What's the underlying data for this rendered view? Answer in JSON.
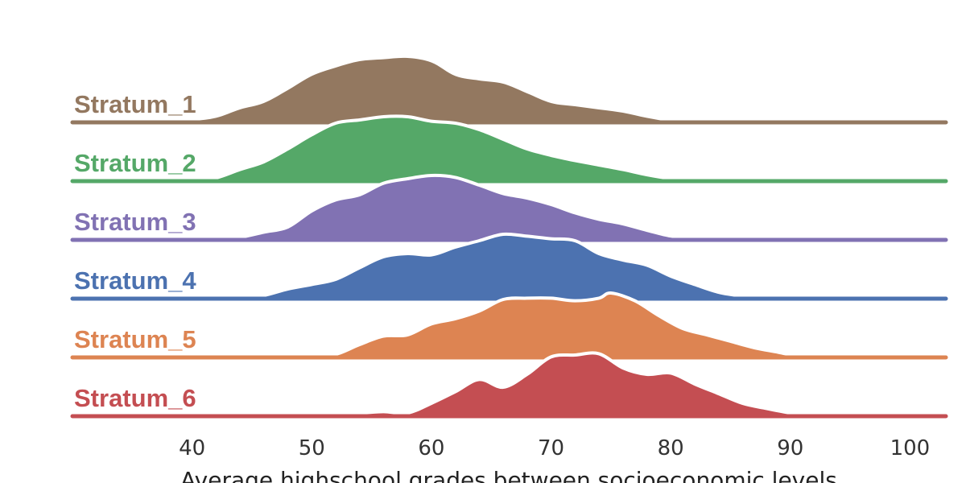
{
  "chart_data": {
    "type": "area",
    "title": "",
    "xlabel": "Average highschool grades between socioeconomic levels",
    "ylabel": "",
    "xlim": [
      30,
      103
    ],
    "xticks": [
      40,
      50,
      60,
      70,
      80,
      90,
      100
    ],
    "grid": false,
    "legend": "none",
    "series": [
      {
        "name": "Stratum_1",
        "color": "#937860",
        "points": [
          [
            30,
            0
          ],
          [
            38,
            0
          ],
          [
            40,
            0.02
          ],
          [
            42,
            0.07
          ],
          [
            44,
            0.2
          ],
          [
            46,
            0.3
          ],
          [
            48,
            0.5
          ],
          [
            50,
            0.72
          ],
          [
            52,
            0.85
          ],
          [
            54,
            0.95
          ],
          [
            56,
            0.98
          ],
          [
            58,
            1.0
          ],
          [
            60,
            0.93
          ],
          [
            62,
            0.72
          ],
          [
            64,
            0.65
          ],
          [
            66,
            0.6
          ],
          [
            68,
            0.45
          ],
          [
            70,
            0.3
          ],
          [
            72,
            0.25
          ],
          [
            74,
            0.2
          ],
          [
            76,
            0.15
          ],
          [
            78,
            0.07
          ],
          [
            80,
            0.01
          ],
          [
            82,
            0
          ],
          [
            103,
            0
          ]
        ]
      },
      {
        "name": "Stratum_2",
        "color": "#55a868",
        "points": [
          [
            30,
            0
          ],
          [
            40,
            0
          ],
          [
            42,
            0.05
          ],
          [
            44,
            0.18
          ],
          [
            46,
            0.3
          ],
          [
            48,
            0.5
          ],
          [
            50,
            0.72
          ],
          [
            52,
            0.9
          ],
          [
            54,
            0.95
          ],
          [
            56,
            1.0
          ],
          [
            58,
            1.0
          ],
          [
            60,
            0.93
          ],
          [
            62,
            0.9
          ],
          [
            64,
            0.8
          ],
          [
            66,
            0.65
          ],
          [
            68,
            0.5
          ],
          [
            70,
            0.4
          ],
          [
            72,
            0.32
          ],
          [
            74,
            0.25
          ],
          [
            76,
            0.18
          ],
          [
            78,
            0.1
          ],
          [
            80,
            0.04
          ],
          [
            82,
            0.01
          ],
          [
            84,
            0
          ],
          [
            103,
            0
          ]
        ]
      },
      {
        "name": "Stratum_3",
        "color": "#8172b3",
        "points": [
          [
            30,
            0
          ],
          [
            42,
            0
          ],
          [
            44,
            0.04
          ],
          [
            46,
            0.12
          ],
          [
            48,
            0.2
          ],
          [
            50,
            0.45
          ],
          [
            52,
            0.62
          ],
          [
            54,
            0.7
          ],
          [
            56,
            0.88
          ],
          [
            58,
            0.95
          ],
          [
            60,
            1.0
          ],
          [
            62,
            0.97
          ],
          [
            64,
            0.85
          ],
          [
            66,
            0.72
          ],
          [
            68,
            0.65
          ],
          [
            70,
            0.55
          ],
          [
            72,
            0.42
          ],
          [
            74,
            0.32
          ],
          [
            76,
            0.25
          ],
          [
            78,
            0.15
          ],
          [
            80,
            0.06
          ],
          [
            82,
            0.03
          ],
          [
            84,
            0.02
          ],
          [
            86,
            0
          ],
          [
            103,
            0
          ]
        ]
      },
      {
        "name": "Stratum_4",
        "color": "#4c72b0",
        "points": [
          [
            30,
            0
          ],
          [
            44,
            0
          ],
          [
            46,
            0.05
          ],
          [
            48,
            0.15
          ],
          [
            50,
            0.22
          ],
          [
            52,
            0.3
          ],
          [
            54,
            0.48
          ],
          [
            56,
            0.65
          ],
          [
            58,
            0.7
          ],
          [
            60,
            0.68
          ],
          [
            62,
            0.8
          ],
          [
            64,
            0.9
          ],
          [
            66,
            1.0
          ],
          [
            68,
            0.97
          ],
          [
            70,
            0.93
          ],
          [
            72,
            0.9
          ],
          [
            74,
            0.7
          ],
          [
            76,
            0.6
          ],
          [
            78,
            0.52
          ],
          [
            80,
            0.35
          ],
          [
            82,
            0.22
          ],
          [
            84,
            0.1
          ],
          [
            86,
            0.04
          ],
          [
            88,
            0.01
          ],
          [
            90,
            0
          ],
          [
            103,
            0
          ]
        ]
      },
      {
        "name": "Stratum_5",
        "color": "#dd8452",
        "points": [
          [
            30,
            0
          ],
          [
            48,
            0
          ],
          [
            50,
            0.04
          ],
          [
            52,
            0.05
          ],
          [
            54,
            0.2
          ],
          [
            56,
            0.33
          ],
          [
            58,
            0.35
          ],
          [
            60,
            0.52
          ],
          [
            62,
            0.6
          ],
          [
            64,
            0.72
          ],
          [
            66,
            0.9
          ],
          [
            68,
            0.92
          ],
          [
            70,
            0.92
          ],
          [
            72,
            0.88
          ],
          [
            74,
            0.92
          ],
          [
            75,
            1.0
          ],
          [
            77,
            0.88
          ],
          [
            79,
            0.65
          ],
          [
            81,
            0.45
          ],
          [
            83,
            0.35
          ],
          [
            85,
            0.25
          ],
          [
            87,
            0.15
          ],
          [
            89,
            0.08
          ],
          [
            91,
            0.01
          ],
          [
            93,
            0
          ],
          [
            103,
            0
          ]
        ]
      },
      {
        "name": "Stratum_6",
        "color": "#c44e52",
        "points": [
          [
            30,
            0
          ],
          [
            48,
            0
          ],
          [
            50,
            0.03
          ],
          [
            52,
            0.05
          ],
          [
            54,
            0.05
          ],
          [
            56,
            0.07
          ],
          [
            58,
            0.05
          ],
          [
            60,
            0.2
          ],
          [
            62,
            0.38
          ],
          [
            64,
            0.57
          ],
          [
            66,
            0.45
          ],
          [
            68,
            0.65
          ],
          [
            70,
            0.92
          ],
          [
            72,
            0.95
          ],
          [
            74,
            0.97
          ],
          [
            76,
            0.75
          ],
          [
            78,
            0.65
          ],
          [
            80,
            0.67
          ],
          [
            82,
            0.5
          ],
          [
            84,
            0.35
          ],
          [
            86,
            0.2
          ],
          [
            88,
            0.12
          ],
          [
            90,
            0.05
          ],
          [
            92,
            0.01
          ],
          [
            94,
            0
          ],
          [
            103,
            0
          ]
        ]
      }
    ]
  }
}
